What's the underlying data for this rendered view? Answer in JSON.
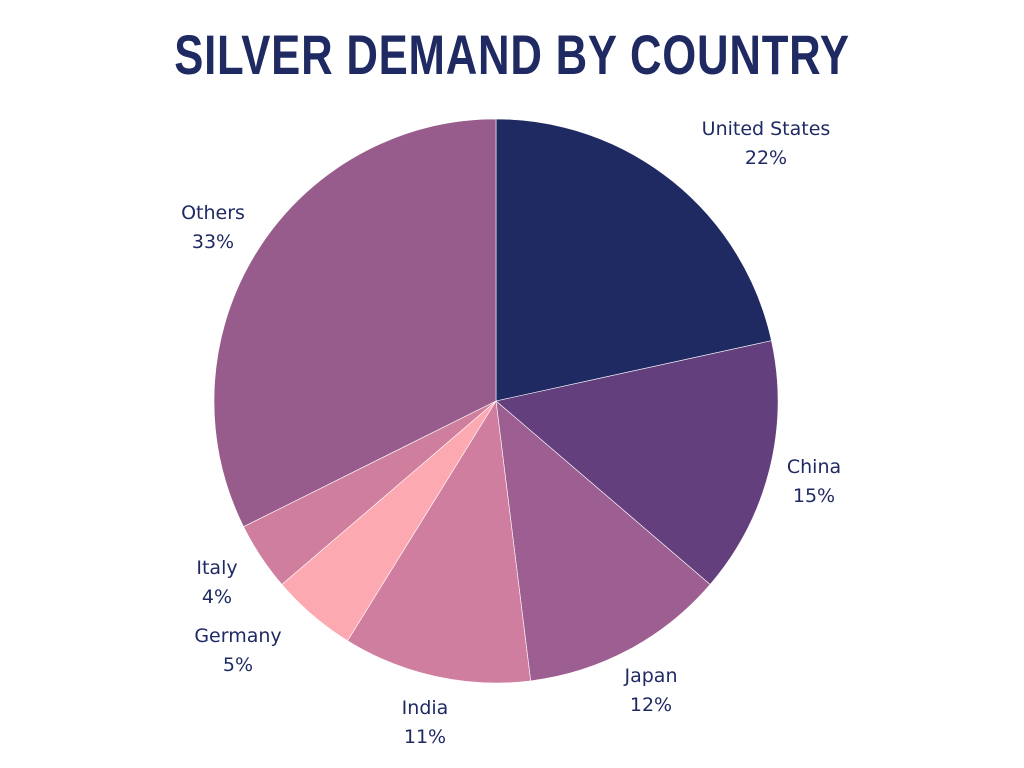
{
  "chart_data": {
    "type": "pie",
    "title": "SILVER DEMAND BY COUNTRY",
    "slices": [
      {
        "label": "United States",
        "value": 22,
        "display": "22%",
        "color": "#1f2a63"
      },
      {
        "label": "China",
        "value": 15,
        "display": "15%",
        "color": "#63407d"
      },
      {
        "label": "Japan",
        "value": 12,
        "display": "12%",
        "color": "#9d5e91"
      },
      {
        "label": "India",
        "value": 11,
        "display": "11%",
        "color": "#d07e9f"
      },
      {
        "label": "Germany",
        "value": 5,
        "display": "5%",
        "color": "#fda9b2"
      },
      {
        "label": "Italy",
        "value": 4,
        "display": "4%",
        "color": "#cf7e9e"
      },
      {
        "label": "Others",
        "value": 33,
        "display": "33%",
        "color": "#985c8c"
      }
    ],
    "start_angle": "top",
    "direction": "clockwise",
    "label_color": "#1f2a63"
  }
}
